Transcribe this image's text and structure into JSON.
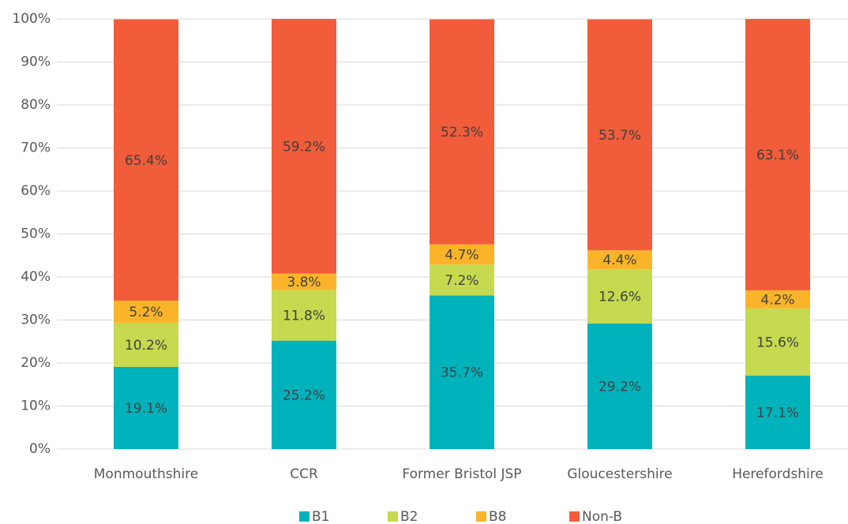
{
  "chart_data": {
    "type": "stacked_bar",
    "categories": [
      "Monmouthshire",
      "CCR",
      "Former Bristol JSP",
      "Gloucestershire",
      "Herefordshire"
    ],
    "series": [
      {
        "name": "B1",
        "color": "#00b2bb",
        "values": [
          19.1,
          25.2,
          35.7,
          29.2,
          17.1
        ],
        "value_labels": [
          "19.1%",
          "25.2%",
          "35.7%",
          "29.2%",
          "17.1%"
        ]
      },
      {
        "name": "B2",
        "color": "#c6d94f",
        "values": [
          10.2,
          11.8,
          7.2,
          12.6,
          15.6
        ],
        "value_labels": [
          "10.2%",
          "11.8%",
          "7.2%",
          "12.6%",
          "15.6%"
        ]
      },
      {
        "name": "B8",
        "color": "#fbb42a",
        "values": [
          5.2,
          3.8,
          4.7,
          4.4,
          4.2
        ],
        "value_labels": [
          "5.2%",
          "3.8%",
          "4.7%",
          "4.4%",
          "4.2%"
        ]
      },
      {
        "name": "Non-B",
        "color": "#f15c3a",
        "values": [
          65.4,
          59.2,
          52.3,
          53.7,
          63.1
        ],
        "value_labels": [
          "65.4%",
          "59.2%",
          "52.3%",
          "53.7%",
          "63.1%"
        ]
      }
    ],
    "ylim": [
      0,
      100
    ],
    "yticks": [
      {
        "value": 0,
        "label": "0%"
      },
      {
        "value": 10,
        "label": "10%"
      },
      {
        "value": 20,
        "label": "20%"
      },
      {
        "value": 30,
        "label": "30%"
      },
      {
        "value": 40,
        "label": "40%"
      },
      {
        "value": 50,
        "label": "50%"
      },
      {
        "value": 60,
        "label": "60%"
      },
      {
        "value": 70,
        "label": "70%"
      },
      {
        "value": 80,
        "label": "80%"
      },
      {
        "value": 90,
        "label": "90%"
      },
      {
        "value": 100,
        "label": "100%"
      }
    ],
    "grid": true,
    "legend": "bottom"
  }
}
